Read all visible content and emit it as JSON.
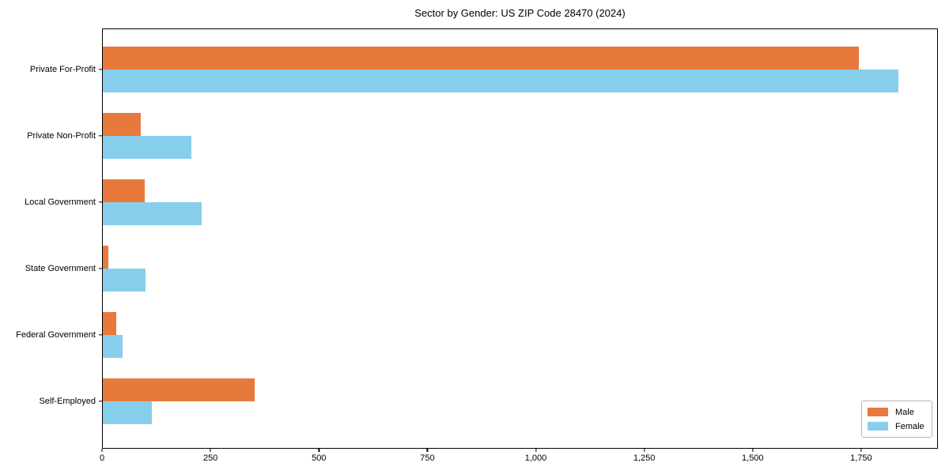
{
  "figure": {
    "title": "Sector by Gender: US ZIP Code 28470 (2024)"
  },
  "chart_data": {
    "type": "bar",
    "orientation": "horizontal",
    "title": "Sector by Gender: US ZIP Code 28470 (2024)",
    "xlabel": "",
    "ylabel": "",
    "categories": [
      "Private For-Profit",
      "Private Non-Profit",
      "Local Government",
      "State Government",
      "Federal Government",
      "Self-Employed"
    ],
    "series": [
      {
        "name": "Male",
        "color": "#e8793c",
        "values": [
          1745,
          89,
          99,
          15,
          33,
          352
        ]
      },
      {
        "name": "Female",
        "color": "#87ceeb",
        "values": [
          1835,
          206,
          229,
          100,
          48,
          114
        ]
      }
    ],
    "xlim": [
      0,
      1927
    ],
    "xticks": {
      "values": [
        0,
        250,
        500,
        750,
        1000,
        1250,
        1500,
        1750
      ],
      "labels": [
        "0",
        "250",
        "500",
        "750",
        "1,000",
        "1,250",
        "1,500",
        "1,750"
      ]
    },
    "grid": false,
    "legend": {
      "position": "lower right",
      "entries": [
        "Male",
        "Female"
      ]
    }
  }
}
